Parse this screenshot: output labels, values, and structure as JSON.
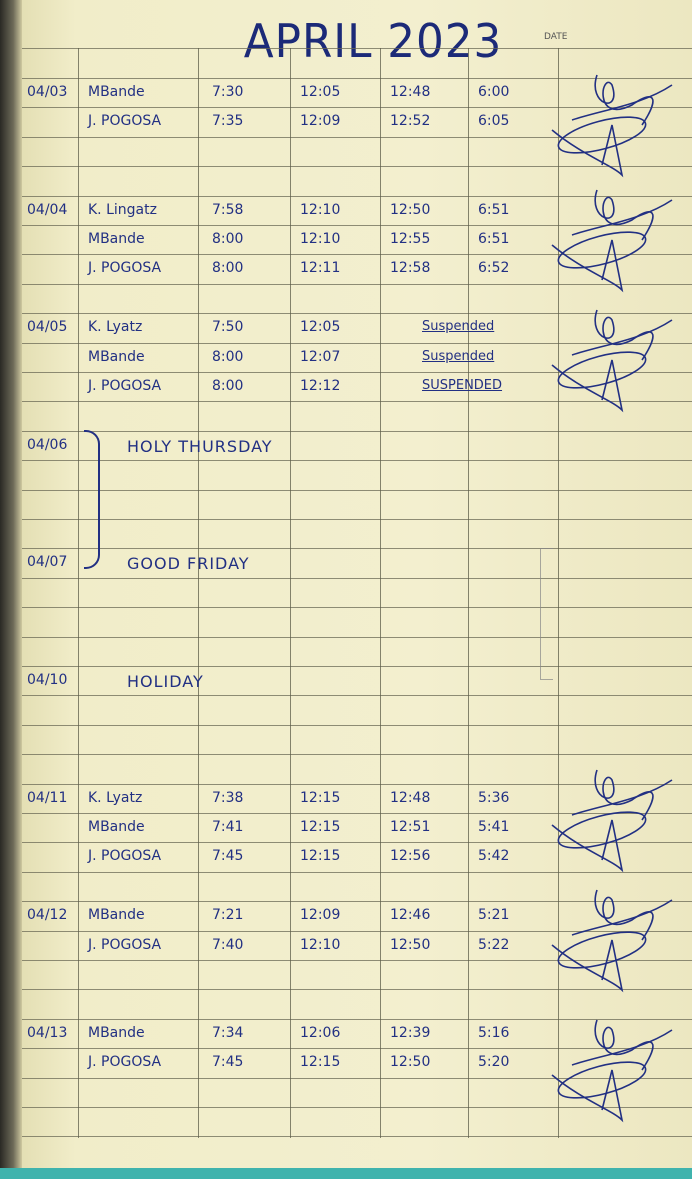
{
  "title": "APRIL 2023",
  "header_hint": "DATE",
  "entries": [
    {
      "row": 0,
      "date": "04/03",
      "name": "MBande",
      "times": [
        "7:30",
        "12:05",
        "12:48",
        "6:00"
      ]
    },
    {
      "row": 1,
      "name": "J. POGOSA",
      "times": [
        "7:35",
        "12:09",
        "12:52",
        "6:05"
      ]
    },
    {
      "row": 4,
      "date": "04/04",
      "name": "K. Lingatz",
      "times": [
        "7:58",
        "12:10",
        "12:50",
        "6:51"
      ]
    },
    {
      "row": 5,
      "name": "MBande",
      "times": [
        "8:00",
        "12:10",
        "12:55",
        "6:51"
      ]
    },
    {
      "row": 6,
      "name": "J. POGOSA",
      "times": [
        "8:00",
        "12:11",
        "12:58",
        "6:52"
      ]
    },
    {
      "row": 8,
      "date": "04/05",
      "name": "K. Lyatz",
      "times": [
        "7:50",
        "12:05"
      ],
      "status": "Suspended"
    },
    {
      "row": 9,
      "name": "MBande",
      "times": [
        "8:00",
        "12:07"
      ],
      "status": "Suspended"
    },
    {
      "row": 10,
      "name": "J. POGOSA",
      "times": [
        "8:00",
        "12:12"
      ],
      "status": "SUSPENDED"
    },
    {
      "row": 12,
      "date": "04/06",
      "note": "HOLY THURSDAY"
    },
    {
      "row": 16,
      "date": "04/07",
      "note": "GOOD FRIDAY"
    },
    {
      "row": 20,
      "date": "04/10",
      "note": "HOLIDAY"
    },
    {
      "row": 24,
      "date": "04/11",
      "name": "K. Lyatz",
      "times": [
        "7:38",
        "12:15",
        "12:48",
        "5:36"
      ]
    },
    {
      "row": 25,
      "name": "MBande",
      "times": [
        "7:41",
        "12:15",
        "12:51",
        "5:41"
      ]
    },
    {
      "row": 26,
      "name": "J. POGOSA",
      "times": [
        "7:45",
        "12:15",
        "12:56",
        "5:42"
      ]
    },
    {
      "row": 28,
      "date": "04/12",
      "name": "MBande",
      "times": [
        "7:21",
        "12:09",
        "12:46",
        "5:21"
      ]
    },
    {
      "row": 29,
      "name": "J. POGOSA",
      "times": [
        "7:40",
        "12:10",
        "12:50",
        "5:22"
      ]
    },
    {
      "row": 32,
      "date": "04/13",
      "name": "MBande",
      "times": [
        "7:34",
        "12:06",
        "12:39",
        "5:16"
      ]
    },
    {
      "row": 33,
      "name": "J. POGOSA",
      "times": [
        "7:45",
        "12:15",
        "12:50",
        "5:20"
      ]
    }
  ],
  "ink_color": "#223083",
  "paper_color": "#f1edc9"
}
